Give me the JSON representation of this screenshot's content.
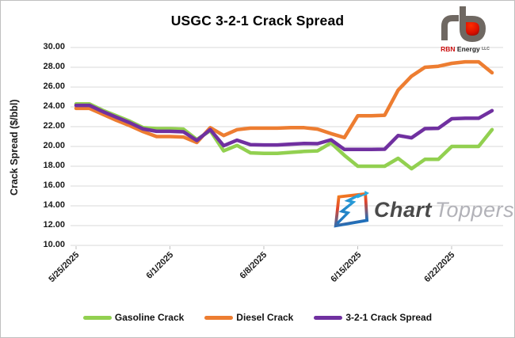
{
  "title": "USGC 3-2-1 Crack Spread",
  "chart_data": {
    "type": "line",
    "title": "USGC 3-2-1 Crack Spread",
    "xlabel": "",
    "ylabel": "Crack Spread ($/bbl)",
    "ylim": [
      10,
      30
    ],
    "ytick_step": 2,
    "ytick_labels": [
      "30.00",
      "28.00",
      "26.00",
      "24.00",
      "22.00",
      "20.00",
      "18.00",
      "16.00",
      "14.00",
      "12.00",
      "10.00"
    ],
    "grid": true,
    "legend_position": "bottom",
    "x": [
      "5/25/2025",
      "5/26/2025",
      "5/27/2025",
      "5/28/2025",
      "5/29/2025",
      "5/30/2025",
      "5/31/2025",
      "6/1/2025",
      "6/2/2025",
      "6/3/2025",
      "6/4/2025",
      "6/5/2025",
      "6/6/2025",
      "6/7/2025",
      "6/8/2025",
      "6/9/2025",
      "6/10/2025",
      "6/11/2025",
      "6/12/2025",
      "6/13/2025",
      "6/14/2025",
      "6/15/2025",
      "6/16/2025",
      "6/17/2025",
      "6/18/2025",
      "6/19/2025",
      "6/20/2025",
      "6/21/2025",
      "6/22/2025",
      "6/23/2025",
      "6/24/2025",
      "6/25/2025"
    ],
    "xtick_labels": [
      "5/25/2025",
      "6/1/2025",
      "6/8/2025",
      "6/15/2025",
      "6/22/2025"
    ],
    "series": [
      {
        "name": "Gasoline Crack",
        "color": "#92D050",
        "values": [
          24.3,
          24.3,
          23.65,
          23.1,
          22.55,
          21.9,
          21.8,
          21.8,
          21.75,
          20.7,
          21.6,
          19.55,
          20.1,
          19.35,
          19.3,
          19.3,
          19.4,
          19.5,
          19.55,
          20.35,
          19.1,
          18.0,
          18.0,
          18.0,
          18.8,
          17.75,
          18.7,
          18.7,
          20.0,
          20.0,
          20.0,
          21.7
        ]
      },
      {
        "name": "Diesel Crack",
        "color": "#ED7D31",
        "values": [
          23.85,
          23.85,
          23.25,
          22.65,
          22.1,
          21.5,
          21.0,
          21.0,
          20.95,
          20.4,
          21.9,
          21.1,
          21.7,
          21.85,
          21.85,
          21.85,
          21.9,
          21.9,
          21.75,
          21.3,
          20.9,
          23.1,
          23.1,
          23.15,
          25.7,
          27.1,
          28.0,
          28.1,
          28.4,
          28.55,
          28.55,
          27.45
        ]
      },
      {
        "name": "3-2-1 Crack Spread",
        "color": "#7030A0",
        "values": [
          24.15,
          24.15,
          23.52,
          22.95,
          22.4,
          21.77,
          21.53,
          21.53,
          21.48,
          20.6,
          21.7,
          20.07,
          20.63,
          20.18,
          20.15,
          20.15,
          20.23,
          20.3,
          20.28,
          20.67,
          19.7,
          19.7,
          19.7,
          19.72,
          21.1,
          20.87,
          21.8,
          21.83,
          22.8,
          22.85,
          22.85,
          23.62
        ]
      }
    ]
  },
  "colors": {
    "gridline": "#D9D9D9",
    "axis": "#BFBFBF",
    "title_text": "#000000"
  },
  "logos": {
    "rbn": {
      "word_red": "RBN",
      "word_black": "Energy",
      "suffix": "LLC"
    },
    "charttoppers": {
      "word1": "Chart",
      "word2": "Toppers"
    }
  }
}
